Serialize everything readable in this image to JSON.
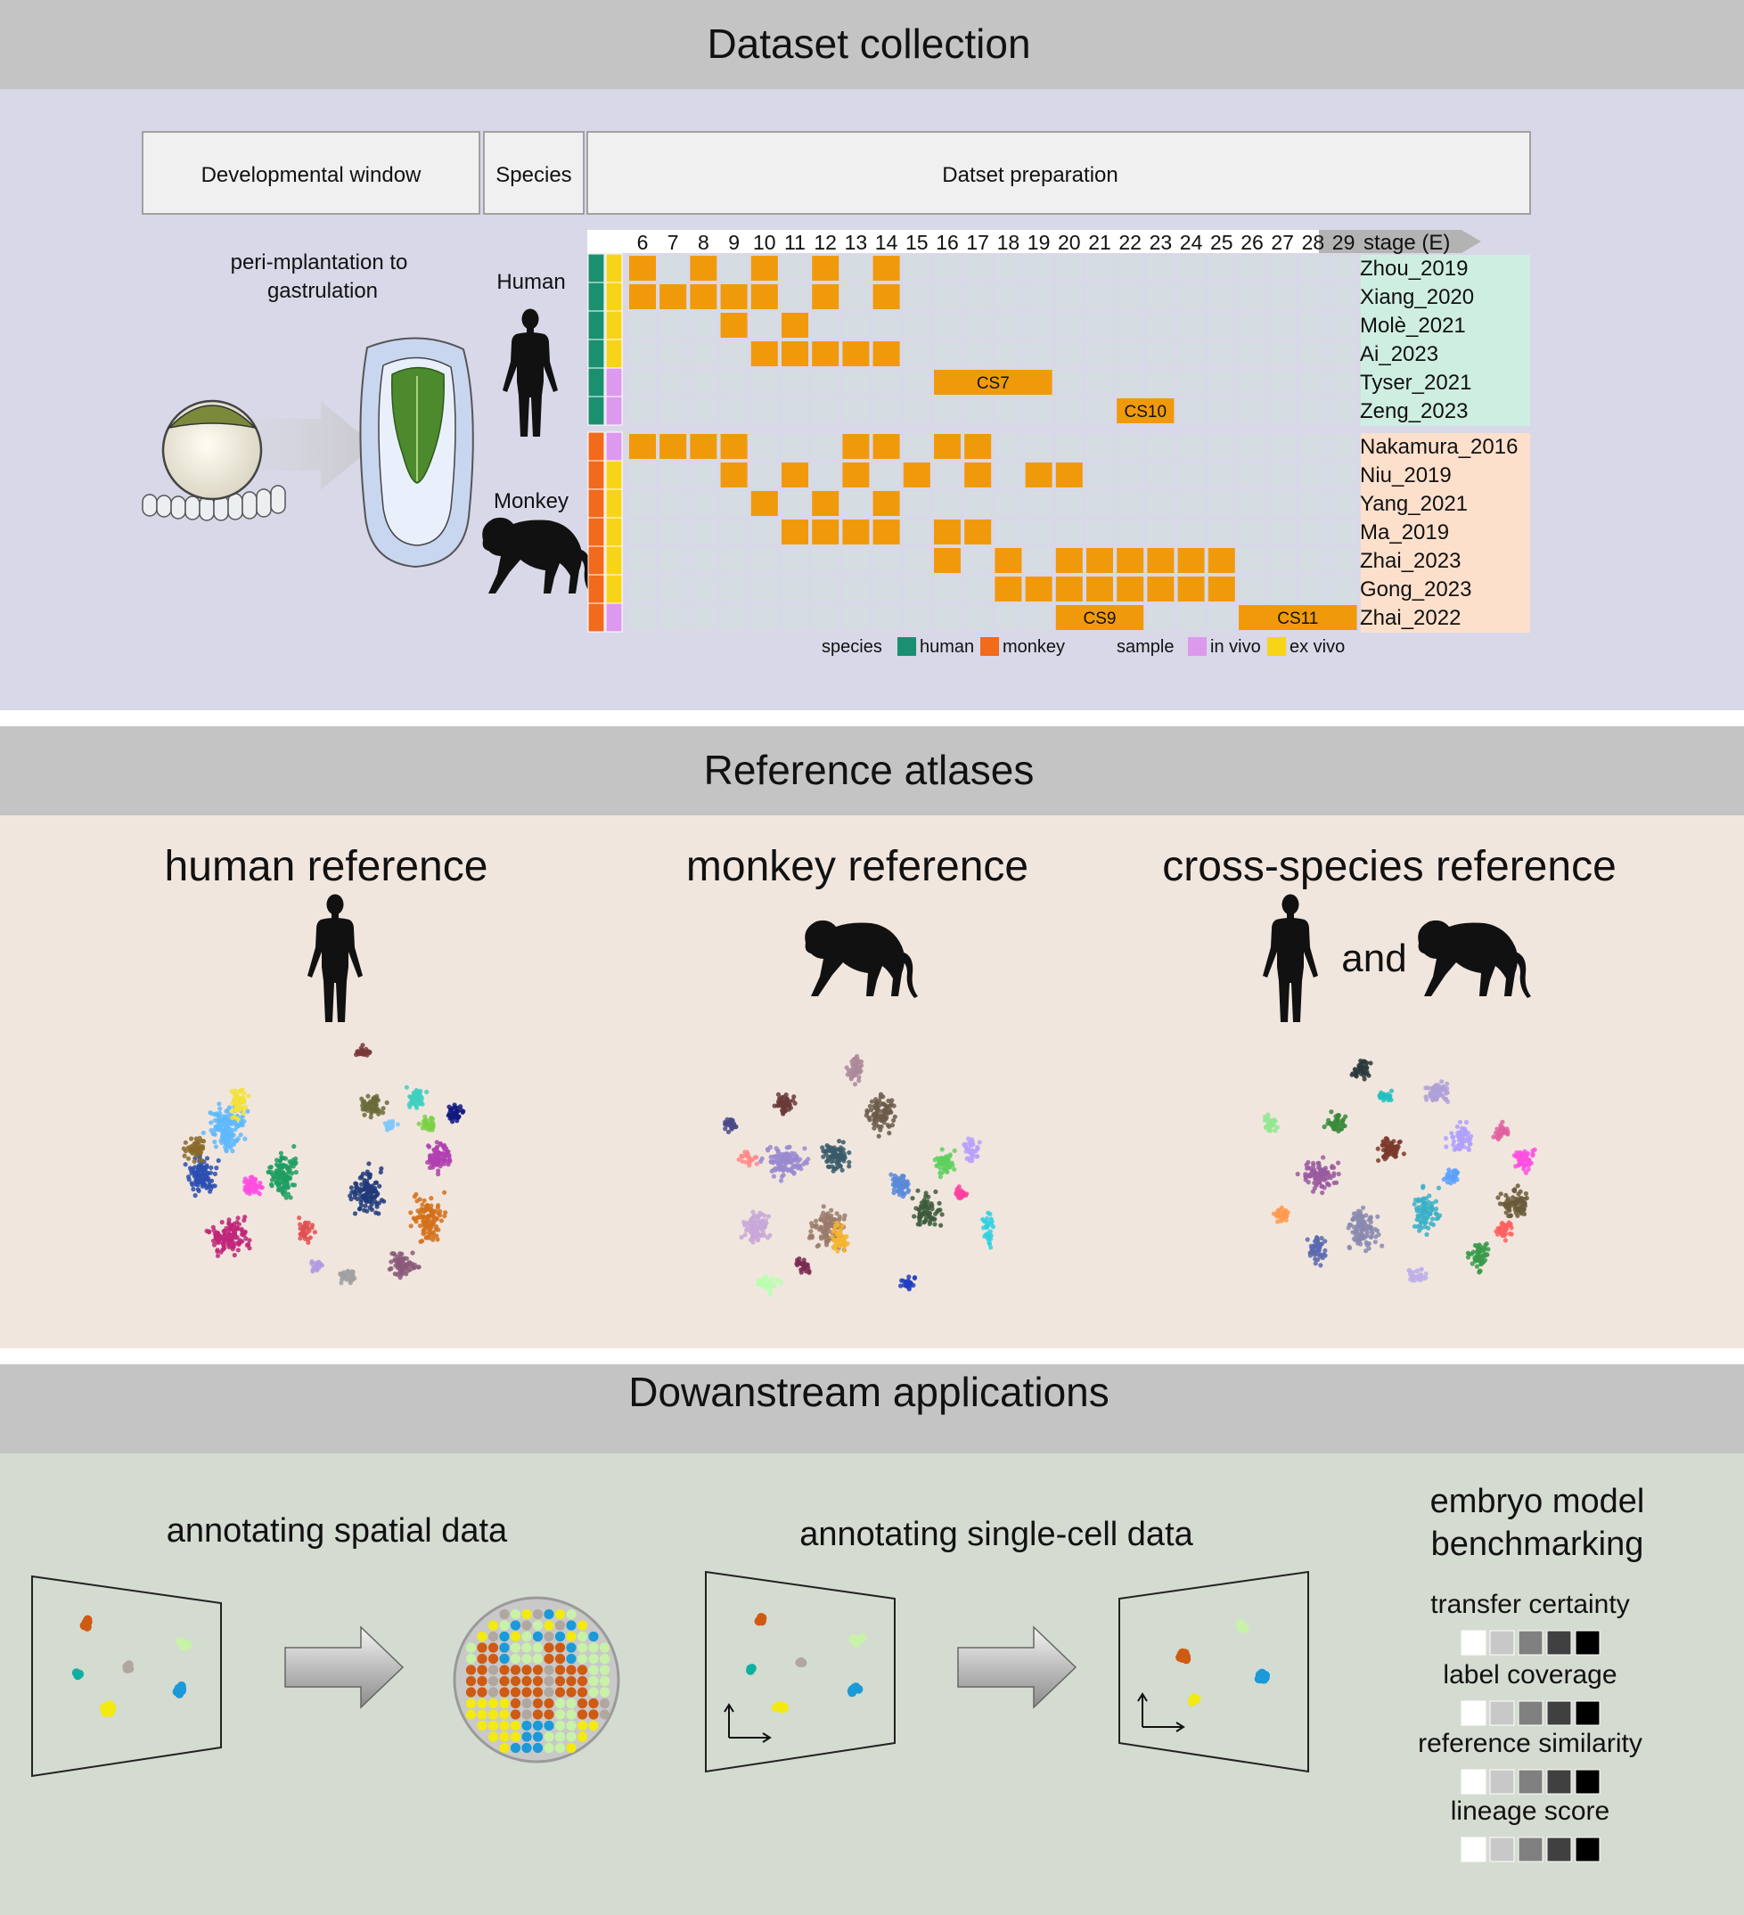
{
  "panels": {
    "collection": "Dataset collection",
    "atlases": "Reference atlases",
    "applications": "Dowanstream applications"
  },
  "collection": {
    "headers": {
      "window": "Developmental window",
      "species": "Species",
      "prep": "Datset preparation"
    },
    "window_label_1": "peri-mplantation to",
    "window_label_2": "gastrulation",
    "human_label": "Human",
    "monkey_label": "Monkey",
    "stage_axis_label": "stage (E)",
    "stages": [
      "6",
      "7",
      "8",
      "9",
      "10",
      "11",
      "12",
      "13",
      "14",
      "15",
      "16",
      "17",
      "18",
      "19",
      "20",
      "21",
      "22",
      "23",
      "24",
      "25",
      "26",
      "27",
      "28",
      "29"
    ],
    "datasets": [
      {
        "name": "Zhou_2019",
        "species": "human",
        "sample": "ex vivo",
        "cells": [
          6,
          8,
          10,
          12,
          14
        ],
        "spans": []
      },
      {
        "name": "Xiang_2020",
        "species": "human",
        "sample": "ex vivo",
        "cells": [
          6,
          7,
          8,
          9,
          10,
          12,
          14
        ],
        "spans": []
      },
      {
        "name": "Molè_2021",
        "species": "human",
        "sample": "ex vivo",
        "cells": [
          9,
          11
        ],
        "spans": []
      },
      {
        "name": "Ai_2023",
        "species": "human",
        "sample": "ex vivo",
        "cells": [
          10,
          11,
          12,
          13,
          14
        ],
        "spans": []
      },
      {
        "name": "Tyser_2021",
        "species": "human",
        "sample": "in vivo",
        "cells": [],
        "spans": [
          {
            "from": 16,
            "to": 19,
            "label": "CS7"
          }
        ]
      },
      {
        "name": "Zeng_2023",
        "species": "human",
        "sample": "in vivo",
        "cells": [],
        "spans": [
          {
            "from": 22,
            "to": 23,
            "label": "CS10"
          }
        ]
      },
      {
        "name": "Nakamura_2016",
        "species": "monkey",
        "sample": "in vivo",
        "cells": [
          6,
          7,
          8,
          9,
          13,
          14,
          16,
          17
        ],
        "spans": []
      },
      {
        "name": "Niu_2019",
        "species": "monkey",
        "sample": "ex vivo",
        "cells": [
          9,
          11,
          13,
          15,
          17,
          19,
          20
        ],
        "spans": []
      },
      {
        "name": "Yang_2021",
        "species": "monkey",
        "sample": "ex vivo",
        "cells": [
          10,
          12,
          14
        ],
        "spans": []
      },
      {
        "name": "Ma_2019",
        "species": "monkey",
        "sample": "ex vivo",
        "cells": [
          11,
          12,
          13,
          14,
          16,
          17
        ],
        "spans": []
      },
      {
        "name": "Zhai_2023",
        "species": "monkey",
        "sample": "ex vivo",
        "cells": [
          16,
          18,
          20,
          21,
          22,
          23,
          24,
          25
        ],
        "spans": []
      },
      {
        "name": "Gong_2023",
        "species": "monkey",
        "sample": "ex vivo",
        "cells": [
          18,
          19,
          20,
          21,
          22,
          23,
          24,
          25
        ],
        "spans": []
      },
      {
        "name": "Zhai_2022",
        "species": "monkey",
        "sample": "in vivo",
        "cells": [],
        "spans": [
          {
            "from": 20,
            "to": 22,
            "label": "CS9"
          },
          {
            "from": 26,
            "to": 29,
            "label": "CS11"
          }
        ]
      }
    ],
    "legend": {
      "species_title": "species",
      "human": "human",
      "monkey": "monkey",
      "sample_title": "sample",
      "in_vivo": "in vivo",
      "ex_vivo": "ex vivo"
    },
    "colors": {
      "human": "#1a9070",
      "monkey": "#f26a1b",
      "in_vivo": "#dd99ee",
      "ex_vivo": "#f7d418",
      "filled": "#f09a0b",
      "empty": "#d5dde3",
      "human_rows_bg": "#cfeee2",
      "monkey_rows_bg": "#fde0cc"
    }
  },
  "atlases": {
    "human": "human reference",
    "monkey": "monkey reference",
    "cross": "cross-species reference",
    "and": "and"
  },
  "applications": {
    "spatial": "annotating spatial data",
    "single_cell": "annotating single-cell data",
    "benchmark_1": "embryo model",
    "benchmark_2": "benchmarking",
    "metrics": [
      "transfer certainty",
      "label coverage",
      "reference similarity",
      "lineage score"
    ],
    "metric_scale_colors": [
      "#ffffff",
      "#c8c8c8",
      "#808080",
      "#404040",
      "#000000"
    ]
  }
}
